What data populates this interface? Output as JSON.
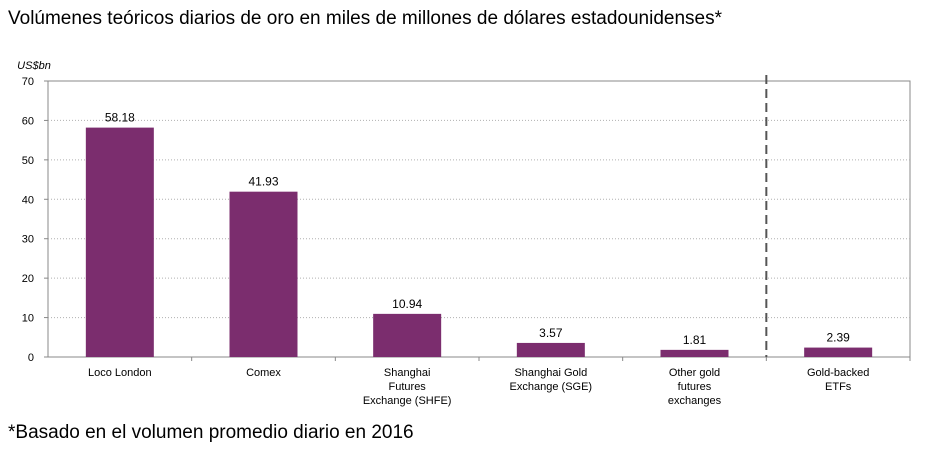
{
  "title": "Volúmenes teóricos diarios de oro en miles de millones de dólares estadounidenses*",
  "footnote": "*Basado en el volumen promedio diario en 2016",
  "colors": {
    "bar": "#7b2d6e",
    "grid": "#b0b0b0",
    "axis": "#888888",
    "divider": "#555555"
  },
  "chart_data": {
    "type": "bar",
    "unit_label": "US$bn",
    "ylim": [
      0,
      70
    ],
    "yticks": [
      0,
      10,
      20,
      30,
      40,
      50,
      60,
      70
    ],
    "grid": true,
    "categories": [
      [
        "Loco London"
      ],
      [
        "Comex"
      ],
      [
        "Shanghai",
        "Futures",
        "Exchange (SHFE)"
      ],
      [
        "Shanghai Gold",
        "Exchange (SGE)"
      ],
      [
        "Other gold",
        "futures",
        "exchanges"
      ],
      [
        "Gold-backed",
        "ETFs"
      ]
    ],
    "values": [
      58.18,
      41.93,
      10.94,
      3.57,
      1.81,
      2.39
    ],
    "data_labels": [
      "58.18",
      "41.93",
      "10.94",
      "3.57",
      "1.81",
      "2.39"
    ],
    "divider_after_category": 4
  }
}
